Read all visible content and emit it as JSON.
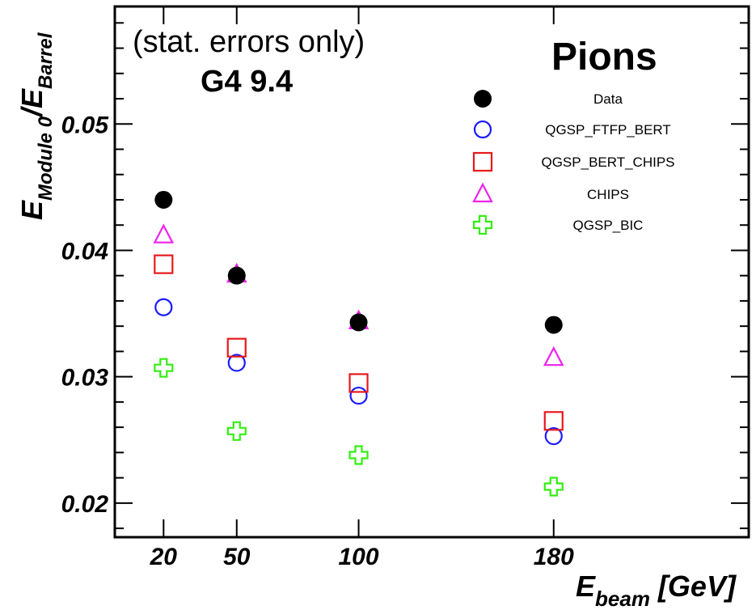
{
  "chart_data": {
    "type": "scatter",
    "x": [
      20,
      50,
      100,
      180
    ],
    "x_tick_labels": [
      "20",
      "50",
      "100",
      "180"
    ],
    "y_tick_labels": [
      "0.02",
      "0.03",
      "0.04",
      "0.05"
    ],
    "y_ticks": [
      0.02,
      0.03,
      0.04,
      0.05
    ],
    "xlim": [
      0,
      260
    ],
    "ylim": [
      0.0173,
      0.0593
    ],
    "xlabel": {
      "main": "E",
      "sub": "beam",
      "unit": " [GeV]"
    },
    "ylabel": {
      "main": "E",
      "sub1": "Module 0",
      "slash": "/",
      "main2": "E",
      "sub2": "Barrel"
    },
    "annotations": {
      "errors_note": "(stat. errors only)",
      "version": "G4 9.4",
      "particle": "Pions"
    },
    "legend_position": "top-right",
    "series": [
      {
        "name": "Data",
        "marker": "filled-circle",
        "color": "#000000",
        "values": [
          0.044,
          0.038,
          0.0343,
          0.0341
        ]
      },
      {
        "name": "QGSP_FTFP_BERT",
        "marker": "open-circle",
        "color": "#1a1aff",
        "values": [
          0.0355,
          0.0311,
          0.0285,
          0.0253
        ]
      },
      {
        "name": "QGSP_BERT_CHIPS",
        "marker": "open-square",
        "color": "#e8191c",
        "values": [
          0.0389,
          0.0323,
          0.0295,
          0.0265
        ]
      },
      {
        "name": "CHIPS",
        "marker": "open-triangle",
        "color": "#ee22ee",
        "values": [
          0.0412,
          0.0381,
          0.0344,
          0.0315
        ]
      },
      {
        "name": "QGSP_BIC",
        "marker": "open-cross",
        "color": "#33ee11",
        "values": [
          0.0307,
          0.0257,
          0.0238,
          0.0213
        ]
      }
    ]
  }
}
